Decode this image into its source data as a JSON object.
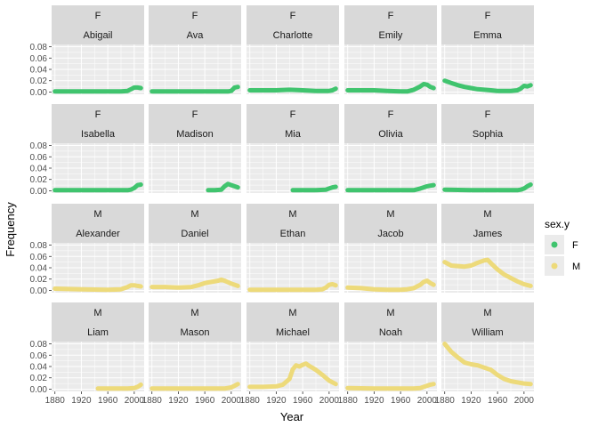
{
  "chart_data": {
    "type": "line",
    "title": "",
    "xlabel": "Year",
    "ylabel": "Frequency",
    "xlim": [
      1875,
      2015
    ],
    "ylim": [
      -0.004,
      0.084
    ],
    "x_ticks": [
      1880,
      1920,
      1960,
      2000
    ],
    "y_ticks": [
      0.0,
      0.02,
      0.04,
      0.06,
      0.08
    ],
    "y_tick_labels": [
      "0.00",
      "0.02",
      "0.04",
      "0.06",
      "0.08"
    ],
    "grid": true,
    "facet_rows": 4,
    "facet_cols": 5,
    "legend": {
      "title": "sex.y",
      "position": "right",
      "entries": [
        {
          "label": "F",
          "color": "#40C46E"
        },
        {
          "label": "M",
          "color": "#EDDA7A"
        }
      ]
    },
    "colors": {
      "F": "#40C46E",
      "M": "#EDDA7A"
    },
    "panels": [
      {
        "sex": "F",
        "name": "Abigail",
        "x": [
          1880,
          1900,
          1920,
          1940,
          1960,
          1980,
          1990,
          1995,
          2000,
          2005,
          2010
        ],
        "y": [
          0.001,
          0.001,
          0.001,
          0.001,
          0.001,
          0.001,
          0.002,
          0.005,
          0.008,
          0.008,
          0.007
        ]
      },
      {
        "sex": "F",
        "name": "Ava",
        "x": [
          1880,
          1920,
          1960,
          1990,
          1995,
          2000,
          2005,
          2010
        ],
        "y": [
          0.001,
          0.001,
          0.001,
          0.001,
          0.001,
          0.002,
          0.008,
          0.009
        ]
      },
      {
        "sex": "F",
        "name": "Charlotte",
        "x": [
          1880,
          1900,
          1920,
          1940,
          1960,
          1980,
          2000,
          2005,
          2010
        ],
        "y": [
          0.003,
          0.003,
          0.003,
          0.004,
          0.003,
          0.002,
          0.002,
          0.003,
          0.006
        ]
      },
      {
        "sex": "F",
        "name": "Emily",
        "x": [
          1880,
          1900,
          1920,
          1940,
          1960,
          1970,
          1980,
          1990,
          1995,
          2000,
          2005,
          2010
        ],
        "y": [
          0.003,
          0.003,
          0.003,
          0.002,
          0.001,
          0.001,
          0.004,
          0.01,
          0.014,
          0.013,
          0.009,
          0.007
        ]
      },
      {
        "sex": "F",
        "name": "Emma",
        "x": [
          1880,
          1890,
          1900,
          1910,
          1920,
          1930,
          1940,
          1950,
          1960,
          1970,
          1980,
          1990,
          1995,
          2000,
          2005,
          2010
        ],
        "y": [
          0.02,
          0.016,
          0.012,
          0.009,
          0.007,
          0.005,
          0.004,
          0.003,
          0.002,
          0.002,
          0.002,
          0.003,
          0.006,
          0.011,
          0.01,
          0.012
        ]
      },
      {
        "sex": "F",
        "name": "Isabella",
        "x": [
          1880,
          1920,
          1960,
          1990,
          1995,
          2000,
          2005,
          2010
        ],
        "y": [
          0.001,
          0.001,
          0.001,
          0.001,
          0.002,
          0.005,
          0.01,
          0.011
        ]
      },
      {
        "sex": "F",
        "name": "Madison",
        "x": [
          1965,
          1975,
          1985,
          1990,
          1995,
          2000,
          2005,
          2010
        ],
        "y": [
          0.001,
          0.001,
          0.002,
          0.008,
          0.012,
          0.01,
          0.008,
          0.006
        ]
      },
      {
        "sex": "F",
        "name": "Mia",
        "x": [
          1945,
          1960,
          1980,
          1995,
          2000,
          2005,
          2010
        ],
        "y": [
          0.001,
          0.001,
          0.001,
          0.002,
          0.004,
          0.006,
          0.007
        ]
      },
      {
        "sex": "F",
        "name": "Olivia",
        "x": [
          1880,
          1920,
          1960,
          1980,
          1990,
          1995,
          2000,
          2005,
          2010
        ],
        "y": [
          0.001,
          0.001,
          0.001,
          0.001,
          0.004,
          0.006,
          0.008,
          0.009,
          0.01
        ]
      },
      {
        "sex": "F",
        "name": "Sophia",
        "x": [
          1880,
          1920,
          1960,
          1980,
          1990,
          1995,
          2000,
          2005,
          2010
        ],
        "y": [
          0.002,
          0.001,
          0.001,
          0.001,
          0.001,
          0.002,
          0.004,
          0.008,
          0.011
        ]
      },
      {
        "sex": "M",
        "name": "Alexander",
        "x": [
          1880,
          1920,
          1960,
          1980,
          1990,
          1995,
          2000,
          2005,
          2010
        ],
        "y": [
          0.003,
          0.002,
          0.001,
          0.002,
          0.006,
          0.009,
          0.009,
          0.008,
          0.007
        ]
      },
      {
        "sex": "M",
        "name": "Daniel",
        "x": [
          1880,
          1900,
          1920,
          1940,
          1950,
          1960,
          1970,
          1980,
          1985,
          1990,
          2000,
          2010
        ],
        "y": [
          0.006,
          0.006,
          0.005,
          0.006,
          0.009,
          0.013,
          0.015,
          0.017,
          0.019,
          0.017,
          0.012,
          0.008
        ]
      },
      {
        "sex": "M",
        "name": "Ethan",
        "x": [
          1880,
          1920,
          1960,
          1980,
          1990,
          1995,
          2000,
          2005,
          2010
        ],
        "y": [
          0.001,
          0.001,
          0.001,
          0.001,
          0.002,
          0.005,
          0.01,
          0.011,
          0.009
        ]
      },
      {
        "sex": "M",
        "name": "Jacob",
        "x": [
          1880,
          1900,
          1920,
          1940,
          1960,
          1970,
          1980,
          1990,
          1995,
          2000,
          2005,
          2010
        ],
        "y": [
          0.005,
          0.004,
          0.002,
          0.001,
          0.001,
          0.002,
          0.004,
          0.01,
          0.015,
          0.017,
          0.013,
          0.01
        ]
      },
      {
        "sex": "M",
        "name": "James",
        "x": [
          1880,
          1890,
          1900,
          1910,
          1920,
          1930,
          1940,
          1945,
          1950,
          1960,
          1970,
          1980,
          1990,
          2000,
          2010
        ],
        "y": [
          0.05,
          0.044,
          0.043,
          0.042,
          0.044,
          0.049,
          0.053,
          0.054,
          0.048,
          0.037,
          0.028,
          0.022,
          0.016,
          0.011,
          0.008
        ]
      },
      {
        "sex": "M",
        "name": "Liam",
        "x": [
          1945,
          1960,
          1980,
          1990,
          2000,
          2005,
          2010
        ],
        "y": [
          0.001,
          0.001,
          0.001,
          0.001,
          0.002,
          0.004,
          0.008
        ]
      },
      {
        "sex": "M",
        "name": "Mason",
        "x": [
          1880,
          1920,
          1960,
          1990,
          2000,
          2005,
          2010
        ],
        "y": [
          0.001,
          0.001,
          0.001,
          0.001,
          0.003,
          0.006,
          0.009
        ]
      },
      {
        "sex": "M",
        "name": "Michael",
        "x": [
          1880,
          1900,
          1920,
          1930,
          1940,
          1945,
          1950,
          1955,
          1960,
          1965,
          1970,
          1980,
          1990,
          2000,
          2010
        ],
        "y": [
          0.004,
          0.004,
          0.005,
          0.008,
          0.018,
          0.035,
          0.042,
          0.04,
          0.043,
          0.045,
          0.041,
          0.034,
          0.025,
          0.015,
          0.009
        ]
      },
      {
        "sex": "M",
        "name": "Noah",
        "x": [
          1880,
          1920,
          1960,
          1980,
          1990,
          2000,
          2005,
          2010
        ],
        "y": [
          0.002,
          0.001,
          0.001,
          0.001,
          0.002,
          0.006,
          0.008,
          0.009
        ]
      },
      {
        "sex": "M",
        "name": "William",
        "x": [
          1880,
          1890,
          1900,
          1910,
          1920,
          1930,
          1940,
          1950,
          1960,
          1970,
          1980,
          1990,
          2000,
          2010
        ],
        "y": [
          0.08,
          0.066,
          0.056,
          0.047,
          0.044,
          0.042,
          0.038,
          0.034,
          0.025,
          0.018,
          0.014,
          0.012,
          0.01,
          0.009
        ]
      }
    ]
  }
}
